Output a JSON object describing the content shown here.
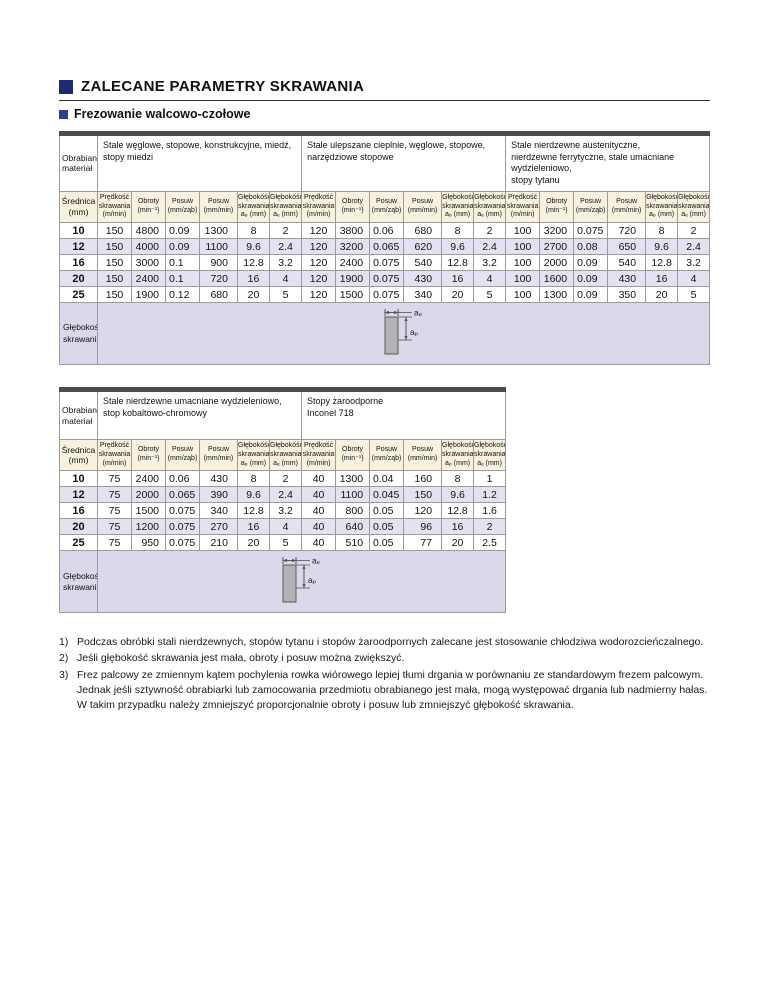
{
  "page_title": {
    "text": "ZALECANE PARAMETRY SKRAWANIA"
  },
  "section": {
    "text": "Frezowanie walcowo-czołowe"
  },
  "colors": {
    "title_square": "#1d2b70",
    "section_square": "#2f3d96",
    "table_top_bar": "#4a4a50",
    "header_cream": "#f7f2df",
    "row_lavender": "#e4e2f1",
    "depth_row_bg": "#dbd8ea"
  },
  "col_headers": [
    "Prędkość\nskrawania\n(m/min)",
    "Obroty\n(min⁻¹)",
    "Posuw\n(mm/ząb)",
    "Posuw\n(mm/min)",
    "Głębokość\nskrawania\naₚ (mm)",
    "Głębokość\nskrawania\naₑ (mm)"
  ],
  "diameters": [
    "10",
    "12",
    "16",
    "20",
    "25"
  ],
  "diagram": {
    "ae_label": "aₑ",
    "ap_label": "aₚ"
  },
  "tables": [
    {
      "corner_label": "Obrabiany\nmateriał",
      "diameter_header": "Średnica\n(mm)",
      "depth_label": "Głębokość\nskrawania",
      "groups": [
        {
          "material": "Stale węglowe, stopowe, konstrukcyjne, miedź,\nstopy miedzi",
          "rows": [
            [
              "150",
              "4800",
              "0.09",
              "1300",
              "8",
              "2"
            ],
            [
              "150",
              "4000",
              "0.09",
              "1100",
              "9.6",
              "2.4"
            ],
            [
              "150",
              "3000",
              "0.1",
              "900",
              "12.8",
              "3.2"
            ],
            [
              "150",
              "2400",
              "0.1",
              "720",
              "16",
              "4"
            ],
            [
              "150",
              "1900",
              "0.12",
              "680",
              "20",
              "5"
            ]
          ]
        },
        {
          "material": "Stale ulepszane cieplnie, węglowe, stopowe,\nnarzędziowe stopowe",
          "rows": [
            [
              "120",
              "3800",
              "0.06",
              "680",
              "8",
              "2"
            ],
            [
              "120",
              "3200",
              "0.065",
              "620",
              "9.6",
              "2.4"
            ],
            [
              "120",
              "2400",
              "0.075",
              "540",
              "12.8",
              "3.2"
            ],
            [
              "120",
              "1900",
              "0.075",
              "430",
              "16",
              "4"
            ],
            [
              "120",
              "1500",
              "0.075",
              "340",
              "20",
              "5"
            ]
          ]
        },
        {
          "material": "Stale nierdzewne austenityczne,\nnierdzewne ferrytyczne, stale umacniane\nwydzieleniowo,\nstopy tytanu",
          "rows": [
            [
              "100",
              "3200",
              "0.075",
              "720",
              "8",
              "2"
            ],
            [
              "100",
              "2700",
              "0.08",
              "650",
              "9.6",
              "2.4"
            ],
            [
              "100",
              "2000",
              "0.09",
              "540",
              "12.8",
              "3.2"
            ],
            [
              "100",
              "1600",
              "0.09",
              "430",
              "16",
              "4"
            ],
            [
              "100",
              "1300",
              "0.09",
              "350",
              "20",
              "5"
            ]
          ]
        }
      ]
    },
    {
      "corner_label": "Obrabiany\nmateriał",
      "diameter_header": "Średnica\n(mm)",
      "depth_label": "Głębokość\nskrawania",
      "groups": [
        {
          "material": "Stale nierdzewne umacniane wydzieleniowo,\nstop kobaltowo-chromowy",
          "rows": [
            [
              "75",
              "2400",
              "0.06",
              "430",
              "8",
              "2"
            ],
            [
              "75",
              "2000",
              "0.065",
              "390",
              "9.6",
              "2.4"
            ],
            [
              "75",
              "1500",
              "0.075",
              "340",
              "12.8",
              "3.2"
            ],
            [
              "75",
              "1200",
              "0.075",
              "270",
              "16",
              "4"
            ],
            [
              "75",
              "950",
              "0.075",
              "210",
              "20",
              "5"
            ]
          ]
        },
        {
          "material": "Stopy żaroodporne\nInconel 718",
          "rows": [
            [
              "40",
              "1300",
              "0.04",
              "160",
              "8",
              "1"
            ],
            [
              "40",
              "1100",
              "0.045",
              "150",
              "9.6",
              "1.2"
            ],
            [
              "40",
              "800",
              "0.05",
              "120",
              "12.8",
              "1.6"
            ],
            [
              "40",
              "640",
              "0.05",
              "96",
              "16",
              "2"
            ],
            [
              "40",
              "510",
              "0.05",
              "77",
              "20",
              "2.5"
            ]
          ]
        }
      ]
    }
  ],
  "footnotes": [
    {
      "num": "1)",
      "text": "Podczas obróbki stali nierdzewnych, stopów tytanu i stopów żaroodpornych zalecane jest stosowanie chłodziwa wodorozcieńczalnego."
    },
    {
      "num": "2)",
      "text": "Jeśli głębokość skrawania jest mała, obroty i posuw można zwiększyć."
    },
    {
      "num": "3)",
      "text": "Frez palcowy ze zmiennym kątem pochylenia rowka wiórowego lepiej tłumi drgania w porównaniu ze standardowym frezem palcowym.\nJednak jeśli sztywność obrabiarki lub zamocowania przedmiotu obrabianego jest mała, mogą występować drgania lub nadmierny hałas.\nW takim przypadku należy zmniejszyć proporcjonalnie obroty i posuw lub zmniejszyć głębokość skrawania."
    }
  ]
}
